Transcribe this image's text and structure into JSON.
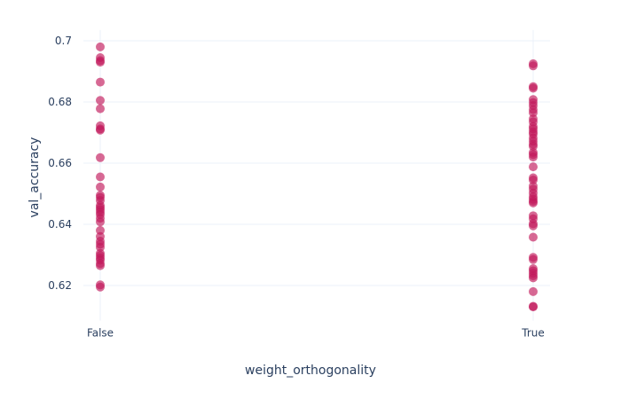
{
  "chart_data": {
    "type": "scatter",
    "xlabel": "weight_orthogonality",
    "ylabel": "val_accuracy",
    "categories": [
      "False",
      "True"
    ],
    "yticks": [
      0.62,
      0.64,
      0.66,
      0.68,
      0.7
    ],
    "ytick_labels": [
      "0.62",
      "0.64",
      "0.66",
      "0.68",
      "0.7"
    ],
    "ylim": [
      0.6085,
      0.7035
    ],
    "grid": true,
    "marker_color": "#c2185b",
    "series": [
      {
        "category": "False",
        "values": [
          0.698,
          0.6945,
          0.6935,
          0.693,
          0.6865,
          0.6805,
          0.6778,
          0.6722,
          0.6712,
          0.6708,
          0.6618,
          0.6555,
          0.6522,
          0.6495,
          0.6488,
          0.6478,
          0.6462,
          0.6455,
          0.6448,
          0.644,
          0.6432,
          0.642,
          0.6408,
          0.638,
          0.636,
          0.6345,
          0.6335,
          0.6325,
          0.6305,
          0.6298,
          0.629,
          0.6283,
          0.6272,
          0.6265,
          0.6202,
          0.6195
        ]
      },
      {
        "category": "True",
        "values": [
          0.6925,
          0.6918,
          0.685,
          0.6845,
          0.6808,
          0.6798,
          0.6788,
          0.6775,
          0.6765,
          0.6745,
          0.6735,
          0.672,
          0.6712,
          0.6702,
          0.6695,
          0.6682,
          0.6672,
          0.6662,
          0.6655,
          0.6635,
          0.6628,
          0.662,
          0.6588,
          0.6552,
          0.6545,
          0.6525,
          0.6515,
          0.6502,
          0.649,
          0.6482,
          0.6475,
          0.647,
          0.6428,
          0.6418,
          0.6402,
          0.6395,
          0.6358,
          0.6292,
          0.6285,
          0.6255,
          0.6248,
          0.624,
          0.6232,
          0.6225,
          0.618,
          0.6132,
          0.613
        ]
      }
    ]
  }
}
